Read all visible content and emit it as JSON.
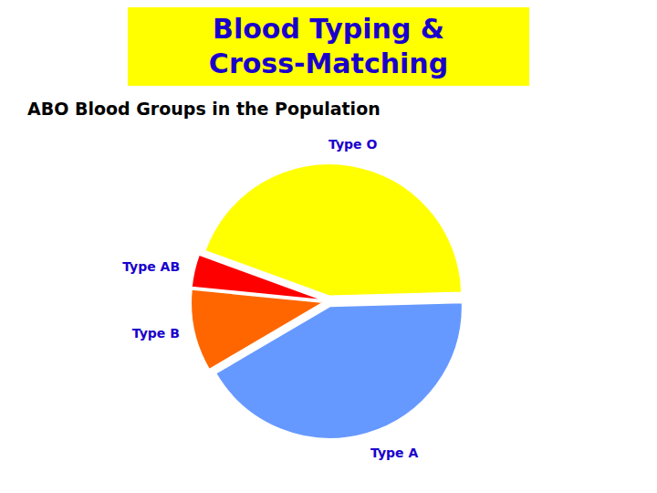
{
  "chart_data": {
    "type": "pie",
    "title": [
      "Blood Typing &",
      "Cross-Matching"
    ],
    "subtitle": "ABO Blood Groups in the Population",
    "categories": [
      "Type O",
      "Type A",
      "Type B",
      "Type AB"
    ],
    "values": [
      44,
      42,
      10,
      4
    ],
    "colors": [
      "#ffff00",
      "#6699ff",
      "#ff6600",
      "#ff0000"
    ]
  }
}
